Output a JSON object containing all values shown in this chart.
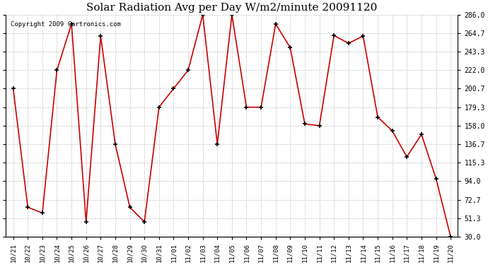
{
  "title": "Solar Radiation Avg per Day W/m2/minute 20091120",
  "copyright": "Copyright 2009 Cartronics.com",
  "labels": [
    "10/21",
    "10/22",
    "10/23",
    "10/24",
    "10/25",
    "10/26",
    "10/27",
    "10/28",
    "10/29",
    "10/30",
    "10/31",
    "11/01",
    "11/02",
    "11/03",
    "11/04",
    "11/05",
    "11/06",
    "11/07",
    "11/08",
    "11/09",
    "11/10",
    "11/11",
    "11/12",
    "11/13",
    "11/14",
    "11/15",
    "11/16",
    "11/17",
    "11/18",
    "11/19",
    "11/20"
  ],
  "values": [
    200.7,
    64.0,
    57.3,
    222.0,
    275.3,
    47.0,
    261.3,
    136.7,
    64.0,
    47.0,
    179.3,
    200.7,
    222.0,
    286.0,
    136.7,
    286.0,
    179.3,
    179.3,
    275.3,
    248.0,
    160.0,
    158.0,
    262.0,
    253.0,
    261.3,
    168.0,
    152.0,
    122.0,
    148.0,
    97.0,
    30.0
  ],
  "line_color": "#cc0000",
  "marker_color": "#000000",
  "bg_color": "#ffffff",
  "plot_bg_color": "#ffffff",
  "grid_color": "#aaaaaa",
  "yticks": [
    30.0,
    51.3,
    72.7,
    94.0,
    115.3,
    136.7,
    158.0,
    179.3,
    200.7,
    222.0,
    243.3,
    264.7,
    286.0
  ],
  "ylim": [
    30.0,
    286.0
  ],
  "title_fontsize": 11
}
